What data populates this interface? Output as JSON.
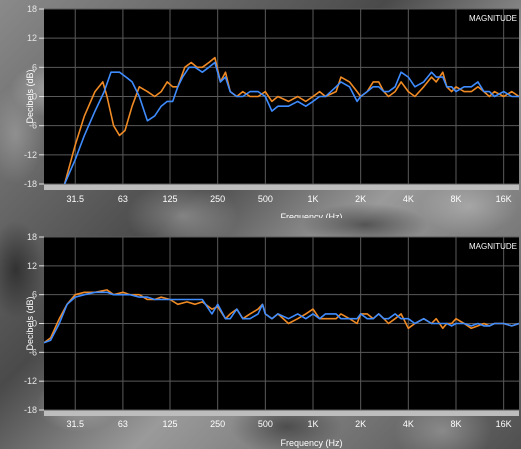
{
  "chart_data": [
    {
      "type": "line",
      "corner_label": "MAGNITUDE",
      "xlabel": "Frequency (Hz)",
      "ylabel": "Decibels (dB)",
      "x_scale": "log",
      "xlim": [
        20,
        20000
      ],
      "ylim": [
        -18,
        18
      ],
      "grid": true,
      "x_ticks": [
        31.5,
        63,
        125,
        250,
        500,
        1000,
        2000,
        4000,
        8000,
        16000
      ],
      "x_tick_labels": [
        "31.5",
        "63",
        "125",
        "250",
        "500",
        "1K",
        "2K",
        "4K",
        "8K",
        "16K"
      ],
      "y_ticks": [
        18,
        12,
        6,
        0,
        -6,
        -12,
        -18
      ],
      "y_tick_labels": [
        "18",
        "12",
        "6",
        "0",
        "-6",
        "-12",
        "-18"
      ],
      "series": [
        {
          "color": "#f08a24",
          "points": [
            [
              27,
              -18
            ],
            [
              31.5,
              -10
            ],
            [
              36,
              -4
            ],
            [
              42,
              1
            ],
            [
              47,
              3
            ],
            [
              50,
              0
            ],
            [
              55,
              -6
            ],
            [
              60,
              -8
            ],
            [
              65,
              -7
            ],
            [
              72,
              -2
            ],
            [
              80,
              2
            ],
            [
              90,
              1
            ],
            [
              100,
              0
            ],
            [
              110,
              1
            ],
            [
              120,
              3
            ],
            [
              130,
              2
            ],
            [
              140,
              2
            ],
            [
              155,
              6
            ],
            [
              170,
              7
            ],
            [
              185,
              6
            ],
            [
              200,
              6
            ],
            [
              220,
              7
            ],
            [
              240,
              8
            ],
            [
              260,
              3
            ],
            [
              280,
              5
            ],
            [
              300,
              1
            ],
            [
              330,
              0
            ],
            [
              360,
              1
            ],
            [
              400,
              0
            ],
            [
              450,
              0
            ],
            [
              500,
              1
            ],
            [
              550,
              -1
            ],
            [
              600,
              0
            ],
            [
              700,
              -1
            ],
            [
              800,
              0
            ],
            [
              900,
              -1
            ],
            [
              1000,
              0
            ],
            [
              1100,
              1
            ],
            [
              1200,
              0
            ],
            [
              1400,
              1
            ],
            [
              1500,
              4
            ],
            [
              1700,
              3
            ],
            [
              1900,
              1
            ],
            [
              2000,
              0
            ],
            [
              2200,
              1
            ],
            [
              2400,
              3
            ],
            [
              2600,
              3
            ],
            [
              2800,
              1
            ],
            [
              3000,
              0
            ],
            [
              3300,
              1
            ],
            [
              3600,
              3
            ],
            [
              4000,
              1
            ],
            [
              4400,
              0
            ],
            [
              5000,
              2
            ],
            [
              5600,
              4
            ],
            [
              6000,
              3
            ],
            [
              6600,
              5
            ],
            [
              7000,
              2
            ],
            [
              7500,
              1
            ],
            [
              8000,
              2
            ],
            [
              9000,
              1
            ],
            [
              10000,
              1
            ],
            [
              11000,
              2
            ],
            [
              12000,
              1
            ],
            [
              13000,
              0
            ],
            [
              14000,
              1
            ],
            [
              16000,
              0
            ],
            [
              18000,
              1
            ],
            [
              20000,
              0
            ]
          ]
        },
        {
          "color": "#3f8cff",
          "points": [
            [
              27,
              -18
            ],
            [
              31.5,
              -13
            ],
            [
              36,
              -8
            ],
            [
              42,
              -3
            ],
            [
              48,
              1
            ],
            [
              53,
              5
            ],
            [
              60,
              5
            ],
            [
              66,
              4
            ],
            [
              72,
              3
            ],
            [
              80,
              0
            ],
            [
              90,
              -5
            ],
            [
              100,
              -4
            ],
            [
              110,
              -2
            ],
            [
              120,
              -1
            ],
            [
              130,
              -1
            ],
            [
              140,
              2
            ],
            [
              150,
              4
            ],
            [
              165,
              6
            ],
            [
              180,
              6
            ],
            [
              200,
              5
            ],
            [
              220,
              6
            ],
            [
              240,
              7
            ],
            [
              260,
              3
            ],
            [
              280,
              4
            ],
            [
              300,
              1
            ],
            [
              330,
              0
            ],
            [
              360,
              0
            ],
            [
              400,
              1
            ],
            [
              450,
              1
            ],
            [
              500,
              0
            ],
            [
              550,
              -3
            ],
            [
              600,
              -2
            ],
            [
              700,
              -2
            ],
            [
              800,
              -1
            ],
            [
              900,
              -2
            ],
            [
              1000,
              -1
            ],
            [
              1100,
              0
            ],
            [
              1200,
              0
            ],
            [
              1400,
              2
            ],
            [
              1500,
              3
            ],
            [
              1700,
              2
            ],
            [
              1900,
              -1
            ],
            [
              2000,
              0
            ],
            [
              2200,
              1
            ],
            [
              2400,
              2
            ],
            [
              2600,
              2
            ],
            [
              2800,
              1
            ],
            [
              3000,
              1
            ],
            [
              3300,
              2
            ],
            [
              3600,
              5
            ],
            [
              4000,
              4
            ],
            [
              4400,
              2
            ],
            [
              5000,
              3
            ],
            [
              5600,
              5
            ],
            [
              6000,
              4
            ],
            [
              6600,
              4
            ],
            [
              7000,
              2
            ],
            [
              7500,
              2
            ],
            [
              8000,
              1
            ],
            [
              9000,
              2
            ],
            [
              10000,
              2
            ],
            [
              11000,
              3
            ],
            [
              12000,
              1
            ],
            [
              13000,
              1
            ],
            [
              14000,
              0
            ],
            [
              16000,
              1
            ],
            [
              18000,
              0
            ],
            [
              20000,
              0
            ]
          ]
        }
      ]
    },
    {
      "type": "line",
      "corner_label": "MAGNITUDE",
      "xlabel": "Frequency (Hz)",
      "ylabel": "Decibels (dB)",
      "x_scale": "log",
      "xlim": [
        20,
        20000
      ],
      "ylim": [
        -18,
        18
      ],
      "grid": true,
      "x_ticks": [
        31.5,
        63,
        125,
        250,
        500,
        1000,
        2000,
        4000,
        8000,
        16000
      ],
      "x_tick_labels": [
        "31.5",
        "63",
        "125",
        "250",
        "500",
        "1K",
        "2K",
        "4K",
        "8K",
        "16K"
      ],
      "y_ticks": [
        18,
        12,
        6,
        0,
        -6,
        -12,
        -18
      ],
      "y_tick_labels": [
        "18",
        "12",
        "6",
        "0",
        "-6",
        "-12",
        "-18"
      ],
      "series": [
        {
          "color": "#f08a24",
          "points": [
            [
              20,
              -4
            ],
            [
              22,
              -3
            ],
            [
              25,
              1
            ],
            [
              28,
              4
            ],
            [
              31.5,
              6
            ],
            [
              36,
              6.5
            ],
            [
              42,
              6.5
            ],
            [
              50,
              7
            ],
            [
              55,
              6
            ],
            [
              63,
              6.5
            ],
            [
              70,
              6
            ],
            [
              80,
              6
            ],
            [
              90,
              5
            ],
            [
              100,
              5
            ],
            [
              110,
              5.5
            ],
            [
              125,
              5
            ],
            [
              140,
              4
            ],
            [
              160,
              4.5
            ],
            [
              180,
              4
            ],
            [
              200,
              4.5
            ],
            [
              230,
              3
            ],
            [
              250,
              3.5
            ],
            [
              280,
              1
            ],
            [
              300,
              2
            ],
            [
              330,
              3
            ],
            [
              360,
              1
            ],
            [
              400,
              2
            ],
            [
              450,
              3
            ],
            [
              480,
              4
            ],
            [
              500,
              2
            ],
            [
              550,
              1
            ],
            [
              600,
              2
            ],
            [
              700,
              0
            ],
            [
              800,
              1
            ],
            [
              900,
              2
            ],
            [
              1000,
              3
            ],
            [
              1100,
              1
            ],
            [
              1200,
              1
            ],
            [
              1400,
              1
            ],
            [
              1500,
              2
            ],
            [
              1700,
              1
            ],
            [
              1900,
              0
            ],
            [
              2000,
              2
            ],
            [
              2200,
              2
            ],
            [
              2400,
              1
            ],
            [
              2600,
              2
            ],
            [
              2800,
              1
            ],
            [
              3000,
              0
            ],
            [
              3300,
              1
            ],
            [
              3600,
              2
            ],
            [
              4000,
              -1
            ],
            [
              4400,
              0
            ],
            [
              5000,
              1
            ],
            [
              5600,
              0
            ],
            [
              6000,
              1
            ],
            [
              6600,
              -1
            ],
            [
              7000,
              0
            ],
            [
              7500,
              0
            ],
            [
              8000,
              1
            ],
            [
              9000,
              0
            ],
            [
              10000,
              -1
            ],
            [
              11000,
              -0.5
            ],
            [
              12000,
              0
            ],
            [
              13000,
              -0.5
            ],
            [
              14000,
              0
            ],
            [
              16000,
              0
            ],
            [
              18000,
              -0.5
            ],
            [
              20000,
              0
            ]
          ]
        },
        {
          "color": "#3f8cff",
          "points": [
            [
              20,
              -4
            ],
            [
              22,
              -3.5
            ],
            [
              25,
              0
            ],
            [
              28,
              4
            ],
            [
              31.5,
              5.5
            ],
            [
              36,
              6
            ],
            [
              42,
              6.5
            ],
            [
              50,
              6.5
            ],
            [
              55,
              6
            ],
            [
              63,
              6
            ],
            [
              70,
              6
            ],
            [
              80,
              5.5
            ],
            [
              90,
              5.5
            ],
            [
              100,
              5
            ],
            [
              110,
              5
            ],
            [
              125,
              5
            ],
            [
              140,
              5
            ],
            [
              160,
              5
            ],
            [
              180,
              5
            ],
            [
              200,
              5
            ],
            [
              230,
              2
            ],
            [
              250,
              4
            ],
            [
              280,
              1
            ],
            [
              300,
              1
            ],
            [
              330,
              3
            ],
            [
              360,
              1
            ],
            [
              400,
              1
            ],
            [
              450,
              2
            ],
            [
              480,
              4
            ],
            [
              500,
              2
            ],
            [
              550,
              1
            ],
            [
              600,
              2
            ],
            [
              700,
              1
            ],
            [
              800,
              2
            ],
            [
              900,
              1
            ],
            [
              1000,
              2
            ],
            [
              1100,
              1
            ],
            [
              1200,
              2
            ],
            [
              1400,
              2
            ],
            [
              1500,
              1
            ],
            [
              1700,
              1
            ],
            [
              1900,
              1
            ],
            [
              2000,
              2
            ],
            [
              2200,
              1
            ],
            [
              2400,
              1
            ],
            [
              2600,
              2
            ],
            [
              2800,
              1
            ],
            [
              3000,
              1
            ],
            [
              3300,
              2
            ],
            [
              3600,
              1
            ],
            [
              4000,
              1
            ],
            [
              4400,
              0
            ],
            [
              5000,
              1
            ],
            [
              5600,
              0
            ],
            [
              6000,
              0
            ],
            [
              6600,
              0
            ],
            [
              7000,
              0
            ],
            [
              7500,
              -0.5
            ],
            [
              8000,
              0
            ],
            [
              9000,
              0
            ],
            [
              10000,
              -0.5
            ],
            [
              11000,
              0
            ],
            [
              12000,
              -0.5
            ],
            [
              13000,
              -0.5
            ],
            [
              14000,
              0
            ],
            [
              16000,
              0
            ],
            [
              18000,
              -0.5
            ],
            [
              20000,
              0
            ]
          ]
        }
      ]
    }
  ]
}
